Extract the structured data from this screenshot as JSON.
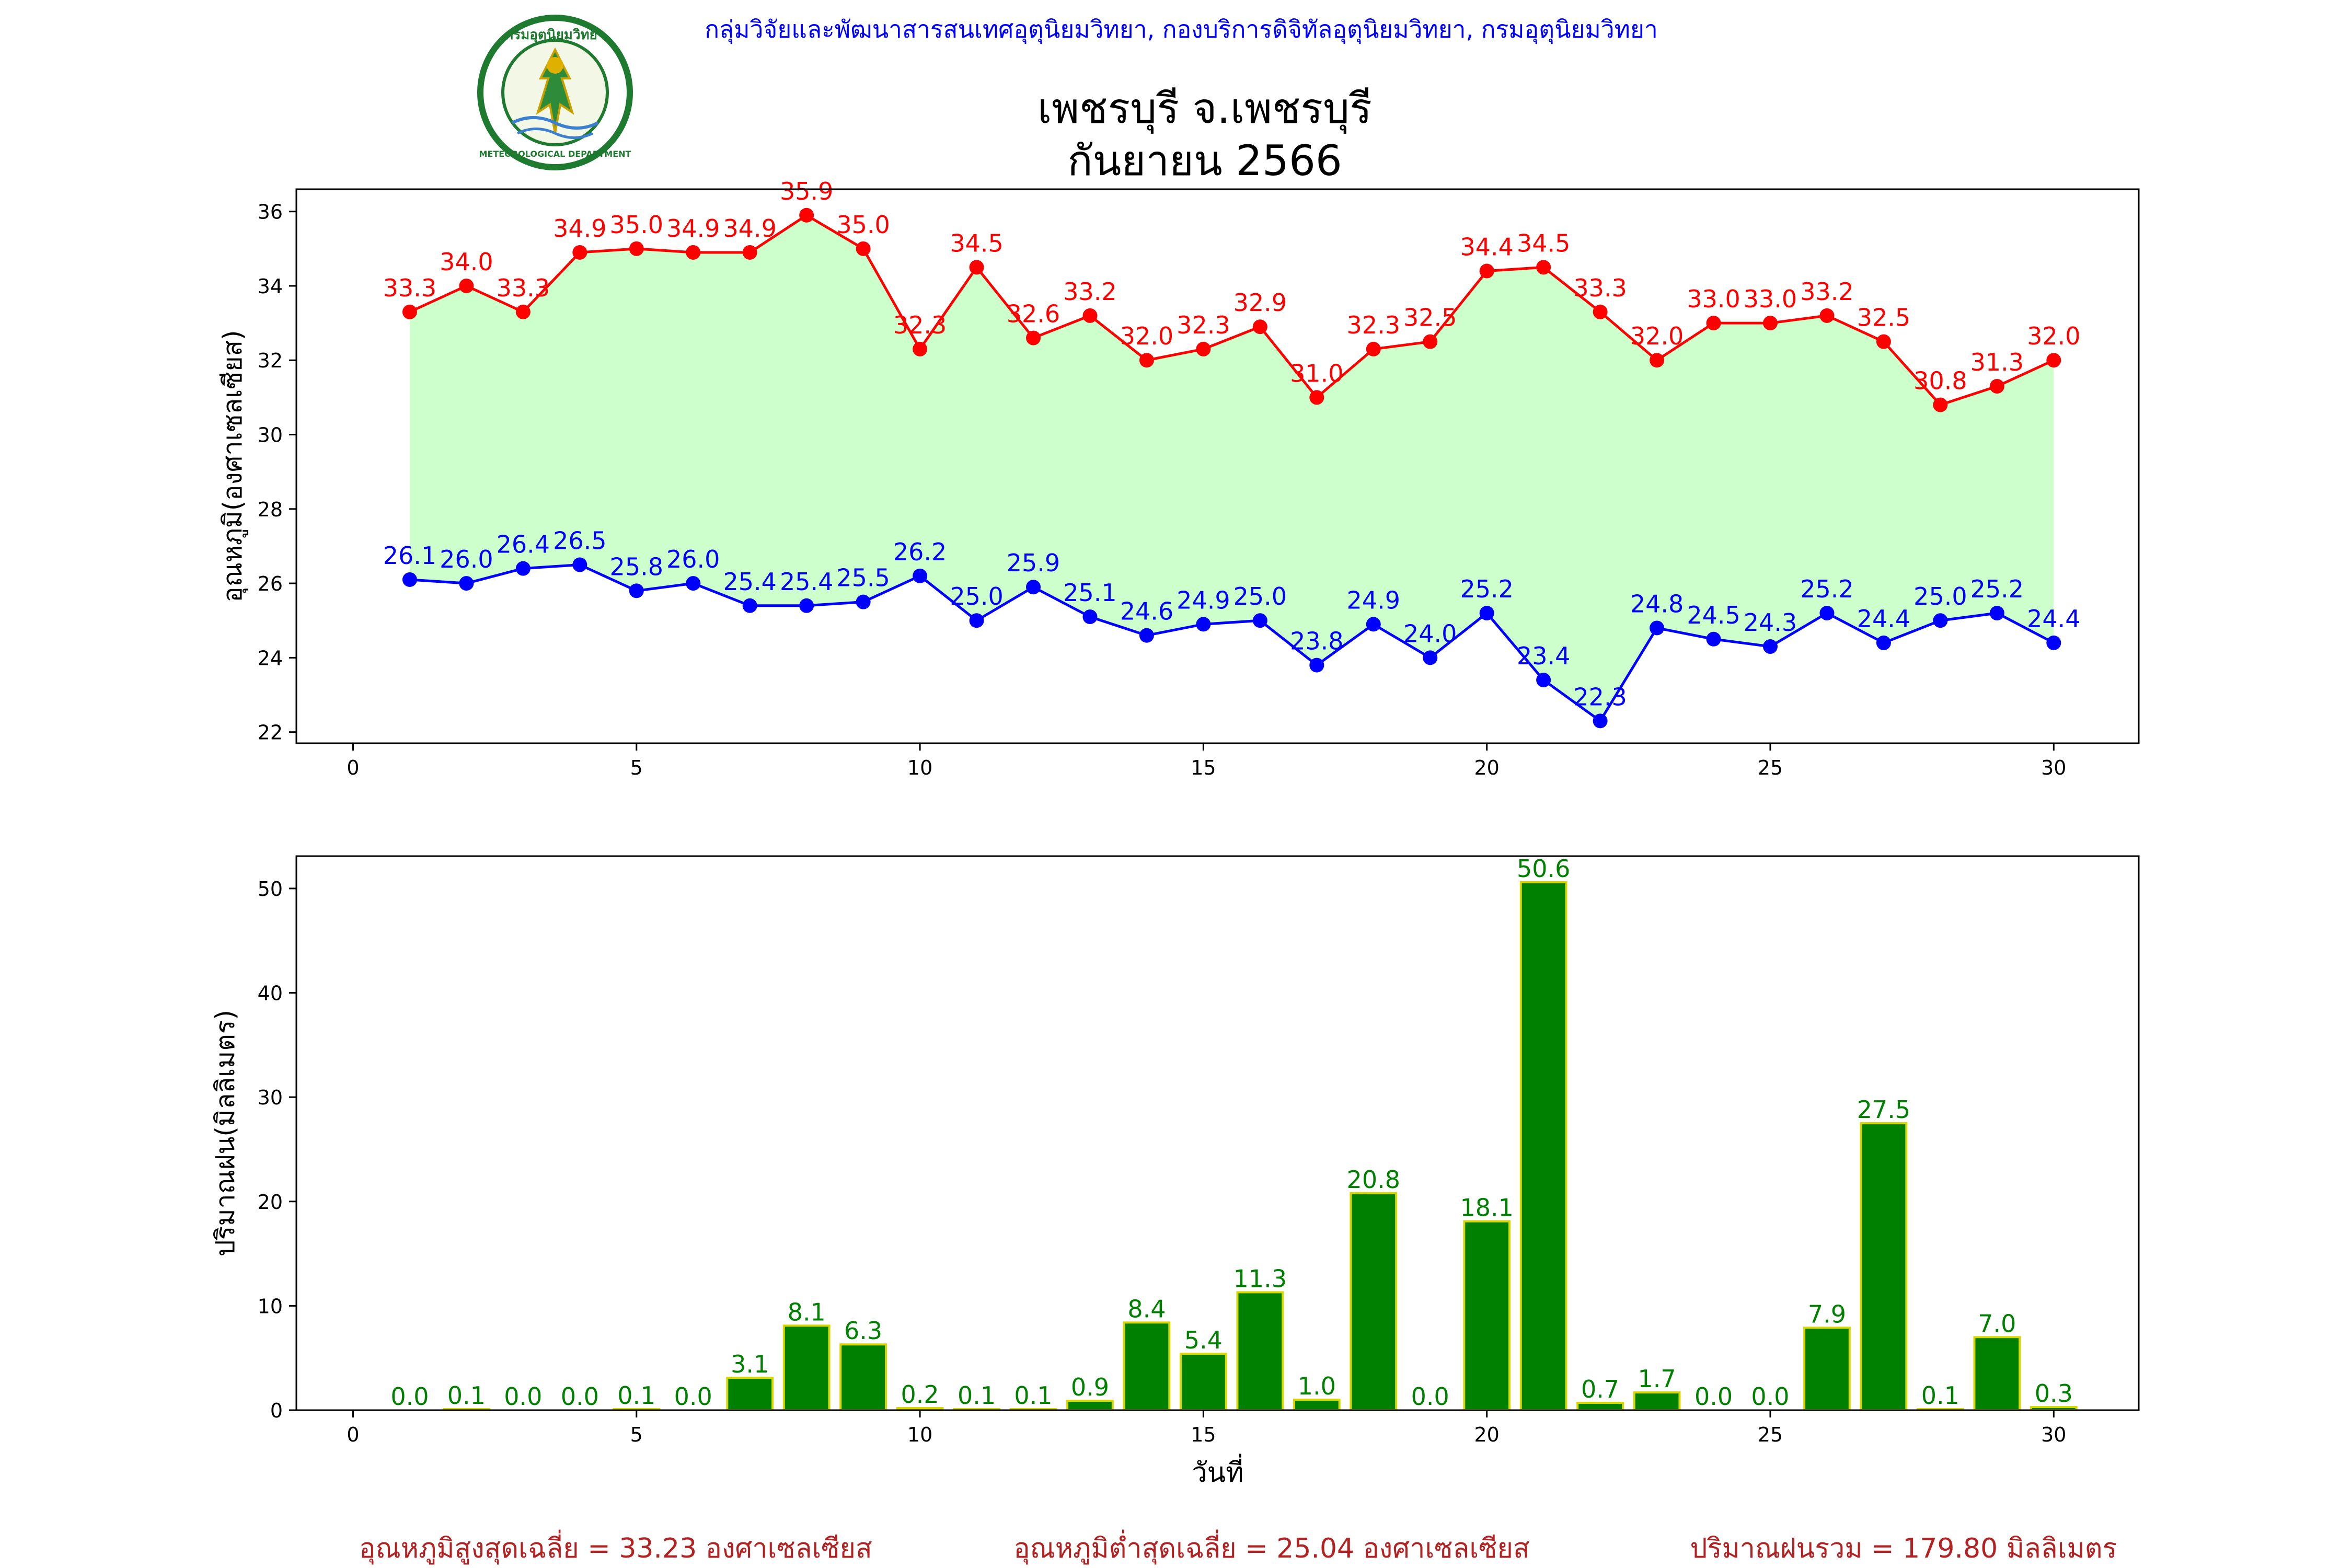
{
  "header": {
    "agency_line": "กลุ่มวิจัยและพัฒนาสารสนเทศอุตุนิยมวิทยา, กองบริการดิจิทัลอุตุนิยมวิทยา, กรมอุตุนิยมวิทยา",
    "title_line1": "เพชรบุรี จ.เพชรบุรี",
    "title_line2": "กันยายน 2566",
    "logo_text": "กรมอุตุนิยมวิทยา",
    "logo_subtext": "METEOROLOGICAL DEPARTMENT"
  },
  "colors": {
    "max_line": "#ff0000",
    "min_line": "#0000ff",
    "fill": "#ccffcc",
    "bar_fill": "#008000",
    "bar_edge": "#d8d800",
    "rain_label": "#008000",
    "header_text": "#0000ff",
    "footer_text": "#b22222"
  },
  "chart_data": [
    {
      "type": "line",
      "ylabel": "อุณหภูมิ(องศาเซลเซียส)",
      "xlabel": "",
      "xlim": [
        -1,
        31.5
      ],
      "ylim": [
        21.7,
        36.6
      ],
      "xticks": [
        0,
        5,
        10,
        15,
        20,
        25,
        30
      ],
      "yticks": [
        22,
        24,
        26,
        28,
        30,
        32,
        34,
        36
      ],
      "grid": false,
      "x": [
        1,
        2,
        3,
        4,
        5,
        6,
        7,
        8,
        9,
        10,
        11,
        12,
        13,
        14,
        15,
        16,
        17,
        18,
        19,
        20,
        21,
        22,
        23,
        24,
        25,
        26,
        27,
        28,
        29,
        30
      ],
      "series": [
        {
          "key": "max",
          "values": [
            33.3,
            34.0,
            33.3,
            34.9,
            35.0,
            34.9,
            34.9,
            35.9,
            35.0,
            32.3,
            34.5,
            32.6,
            33.2,
            32.0,
            32.3,
            32.9,
            31.0,
            32.3,
            32.5,
            34.4,
            34.5,
            33.3,
            32.0,
            33.0,
            33.0,
            33.2,
            32.5,
            30.8,
            31.3,
            32.0
          ]
        },
        {
          "key": "min",
          "values": [
            26.1,
            26.0,
            26.4,
            26.5,
            25.8,
            26.0,
            25.4,
            25.4,
            25.5,
            26.2,
            25.0,
            25.9,
            25.1,
            24.6,
            24.9,
            25.0,
            23.8,
            24.9,
            24.0,
            25.2,
            23.4,
            22.3,
            24.8,
            24.5,
            24.3,
            25.2,
            24.4,
            25.0,
            25.2,
            24.4
          ]
        }
      ]
    },
    {
      "type": "bar",
      "ylabel": "ปริมาณฝน(มิลลิเมตร)",
      "xlabel": "วันที่",
      "xlim": [
        -1,
        31.5
      ],
      "ylim": [
        0,
        53.1
      ],
      "xticks": [
        0,
        5,
        10,
        15,
        20,
        25,
        30
      ],
      "yticks": [
        0,
        10,
        20,
        30,
        40,
        50
      ],
      "grid": false,
      "x": [
        1,
        2,
        3,
        4,
        5,
        6,
        7,
        8,
        9,
        10,
        11,
        12,
        13,
        14,
        15,
        16,
        17,
        18,
        19,
        20,
        21,
        22,
        23,
        24,
        25,
        26,
        27,
        28,
        29,
        30
      ],
      "values": [
        0.0,
        0.1,
        0.0,
        0.0,
        0.1,
        0.0,
        3.1,
        8.1,
        6.3,
        0.2,
        0.1,
        0.1,
        0.9,
        8.4,
        5.4,
        11.3,
        1.0,
        20.8,
        0.0,
        18.1,
        50.6,
        0.7,
        1.7,
        0.0,
        0.0,
        7.9,
        27.5,
        0.1,
        7.0,
        0.3
      ]
    }
  ],
  "footer": {
    "avg_max": "อุณหภูมิสูงสุดเฉลี่ย = 33.23 องศาเซลเซียส",
    "avg_min": "อุณหภูมิต่ำสุดเฉลี่ย = 25.04 องศาเซลเซียส",
    "total_rain": "ปริมาณฝนรวม = 179.80 มิลลิเมตร"
  }
}
